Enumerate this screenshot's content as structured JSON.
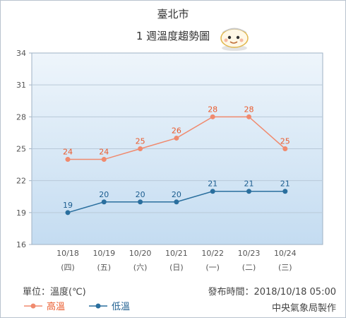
{
  "title": "臺北市",
  "subtitle": "1 週溫度趨勢圖",
  "unit_label": "單位：溫度(℃)",
  "issued_label": "發布時間：2018/10/18 05:00",
  "agency": "中央氣象局製作",
  "icons": {
    "mascot": "weather-mascot-icon"
  },
  "colors": {
    "high": "#f08a6e",
    "low": "#2a6f9e",
    "high_text": "#ea5a2c",
    "low_text": "#1c5d8f",
    "plot_top": "#eef5fb",
    "plot_bottom": "#c4dcf1",
    "grid": "#b8c9d8"
  },
  "chart_data": {
    "type": "line",
    "categories": [
      "10/18",
      "10/19",
      "10/20",
      "10/21",
      "10/22",
      "10/23",
      "10/24"
    ],
    "weekday_labels": [
      "(四)",
      "(五)",
      "(六)",
      "(日)",
      "(一)",
      "(二)",
      "(三)"
    ],
    "series": [
      {
        "name": "高溫",
        "values": [
          24,
          24,
          25,
          26,
          28,
          28,
          25
        ]
      },
      {
        "name": "低溫",
        "values": [
          19,
          20,
          20,
          20,
          21,
          21,
          21
        ]
      }
    ],
    "yticks": [
      16,
      19,
      22,
      25,
      28,
      31,
      34
    ],
    "ylim": [
      16,
      34
    ],
    "grid": true,
    "legend_position": "bottom-left"
  }
}
